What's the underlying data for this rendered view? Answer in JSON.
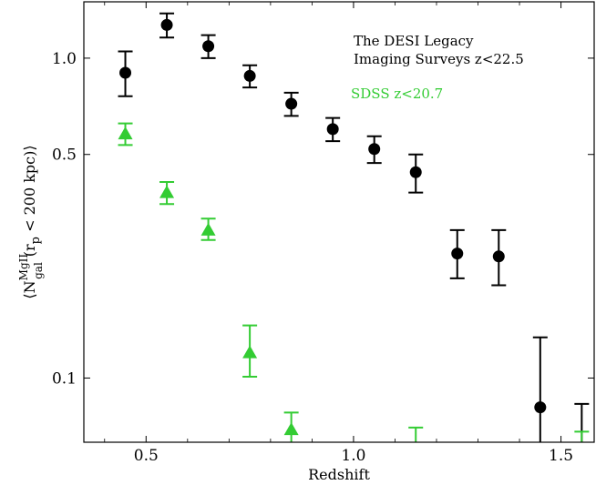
{
  "chart_data": {
    "type": "scatter",
    "title": "",
    "xlabel": "Redshift",
    "ylabel_parts": {
      "open": "⟨N",
      "sup": "MgII",
      "sub": "gal",
      "mid": "(r",
      "psub": "p",
      "close": " < 200 kpc)⟩"
    },
    "xlim": [
      0.35,
      1.58
    ],
    "ylim": [
      0.063,
      1.5
    ],
    "yscale": "log",
    "xticks": [
      0.5,
      1.0,
      1.5
    ],
    "xtick_labels": [
      "0.5",
      "1.0",
      "1.5"
    ],
    "yticks": [
      0.1,
      0.5,
      1.0
    ],
    "ytick_labels": [
      "0.1",
      "0.5",
      "1.0"
    ],
    "grid": false,
    "legend_placement": "top-right",
    "series": [
      {
        "name": "The DESI Legacy Imaging Surveys z<22.5",
        "legend_lines": [
          "The DESI Legacy",
          "Imaging Surveys z<22.5"
        ],
        "color": "#000000",
        "marker": "circle",
        "points": [
          {
            "x": 0.45,
            "y": 0.9,
            "lo": 0.76,
            "hi": 1.05
          },
          {
            "x": 0.55,
            "y": 1.27,
            "lo": 1.16,
            "hi": 1.38
          },
          {
            "x": 0.65,
            "y": 1.09,
            "lo": 1.0,
            "hi": 1.18
          },
          {
            "x": 0.75,
            "y": 0.88,
            "lo": 0.81,
            "hi": 0.95
          },
          {
            "x": 0.85,
            "y": 0.72,
            "lo": 0.66,
            "hi": 0.78
          },
          {
            "x": 0.95,
            "y": 0.6,
            "lo": 0.55,
            "hi": 0.65
          },
          {
            "x": 1.05,
            "y": 0.52,
            "lo": 0.47,
            "hi": 0.57
          },
          {
            "x": 1.15,
            "y": 0.44,
            "lo": 0.38,
            "hi": 0.5
          },
          {
            "x": 1.25,
            "y": 0.245,
            "lo": 0.205,
            "hi": 0.29
          },
          {
            "x": 1.35,
            "y": 0.24,
            "lo": 0.195,
            "hi": 0.29
          },
          {
            "x": 1.45,
            "y": 0.081,
            "lo": 0.055,
            "hi": 0.134
          },
          {
            "x": 1.55,
            "y": null,
            "lo": 0.055,
            "hi": 0.083
          }
        ]
      },
      {
        "name": "SDSS z<20.7",
        "legend_lines": [
          "SDSS z<20.7"
        ],
        "color": "#33cc33",
        "marker": "triangle",
        "points": [
          {
            "x": 0.45,
            "y": 0.58,
            "lo": 0.535,
            "hi": 0.625
          },
          {
            "x": 0.55,
            "y": 0.38,
            "lo": 0.35,
            "hi": 0.41
          },
          {
            "x": 0.65,
            "y": 0.29,
            "lo": 0.27,
            "hi": 0.315
          },
          {
            "x": 0.75,
            "y": 0.12,
            "lo": 0.101,
            "hi": 0.146
          },
          {
            "x": 0.85,
            "y": 0.069,
            "lo": 0.055,
            "hi": 0.078
          },
          {
            "x": 1.15,
            "y": null,
            "lo": 0.055,
            "hi": 0.07
          },
          {
            "x": 1.55,
            "y": null,
            "lo": 0.055,
            "hi": 0.068
          }
        ]
      }
    ]
  }
}
